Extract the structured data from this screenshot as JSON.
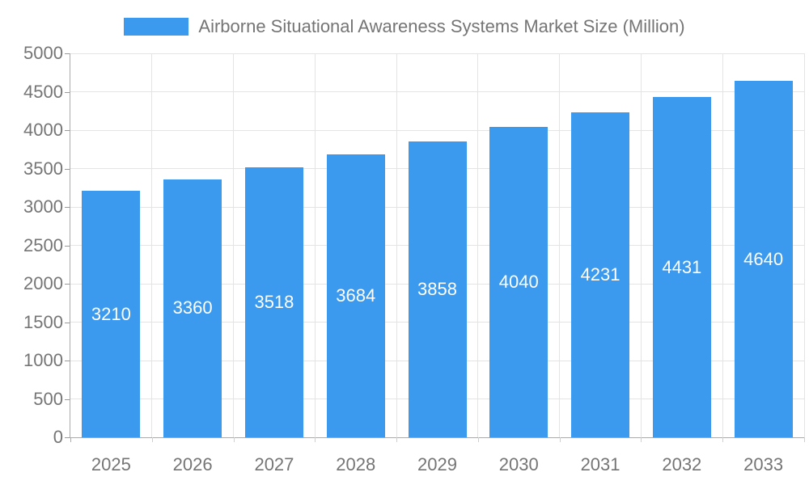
{
  "legend": {
    "label": "Airborne Situational Awareness Systems Market Size (Million)"
  },
  "chart_data": {
    "type": "bar",
    "title": "Airborne Situational Awareness Systems Market Size (Million)",
    "categories": [
      "2025",
      "2026",
      "2027",
      "2028",
      "2029",
      "2030",
      "2031",
      "2032",
      "2033"
    ],
    "values": [
      3210,
      3360,
      3518,
      3684,
      3858,
      4040,
      4231,
      4431,
      4640
    ],
    "xlabel": "",
    "ylabel": "",
    "ylim": [
      0,
      5000
    ],
    "ytick_step": 500,
    "yticks": [
      0,
      500,
      1000,
      1500,
      2000,
      2500,
      3000,
      3500,
      4000,
      4500,
      5000
    ],
    "grid": true,
    "value_labels": "inside-center",
    "legend_position": "top-center",
    "bar_color": "#3B99EE",
    "bar_label_color": "#FFFFFF",
    "axis_line_color": "#AAAAAA",
    "grid_line_color": "#E4E4E4",
    "tick_color": "#999999",
    "x_tick_color": "#CFCFCF",
    "tick_label_color": "#757575",
    "background_color": "#FFFFFF"
  }
}
